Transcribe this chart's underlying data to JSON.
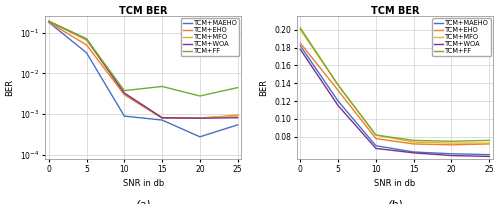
{
  "title": "TCM BER",
  "xlabel": "SNR in db",
  "ylabel": "BER",
  "legend_labels": [
    "TCM+MAEHO",
    "TCM+EHO",
    "TCM+MFO",
    "TCM+WOA",
    "TCM+FF"
  ],
  "colors": [
    "#4472c4",
    "#ed7d31",
    "#edb120",
    "#7e2f8e",
    "#77ac30"
  ],
  "snr": [
    0,
    5,
    10,
    15,
    20,
    25
  ],
  "psk_data": {
    "MAEHO": [
      0.18,
      0.032,
      0.0009,
      0.00072,
      0.00028,
      0.00055
    ],
    "EHO": [
      0.18,
      0.05,
      0.003,
      0.0008,
      0.0008,
      0.00095
    ],
    "MFO": [
      0.19,
      0.065,
      0.0033,
      0.00082,
      0.00082,
      0.0009
    ],
    "WOA": [
      0.19,
      0.07,
      0.0033,
      0.00082,
      0.0008,
      0.00082
    ],
    "FF": [
      0.19,
      0.07,
      0.0038,
      0.0048,
      0.0028,
      0.0045
    ]
  },
  "psk_ylim_log": [
    -4.1,
    -0.6
  ],
  "psk_ytick_vals": [
    0.0001,
    0.001,
    0.01,
    0.1
  ],
  "psk_ytick_labels": [
    "10^{-4}",
    "10^{-3}",
    "10^{-2}",
    "10^{-1}"
  ],
  "qam_data": {
    "MAEHO": [
      0.182,
      0.12,
      0.07,
      0.063,
      0.061,
      0.06
    ],
    "EHO": [
      0.185,
      0.132,
      0.078,
      0.072,
      0.071,
      0.072
    ],
    "MFO": [
      0.2,
      0.138,
      0.082,
      0.074,
      0.073,
      0.073
    ],
    "WOA": [
      0.178,
      0.115,
      0.067,
      0.062,
      0.059,
      0.058
    ],
    "FF": [
      0.202,
      0.138,
      0.082,
      0.076,
      0.075,
      0.076
    ]
  },
  "qam_ylim": [
    0.055,
    0.215
  ],
  "qam_yticks": [
    0.08,
    0.1,
    0.12,
    0.14,
    0.16,
    0.18,
    0.2
  ],
  "qam_ytick_labels": [
    "0.08",
    "0.10",
    "0.12",
    "0.14",
    "0.16",
    "0.18",
    "0.20"
  ]
}
